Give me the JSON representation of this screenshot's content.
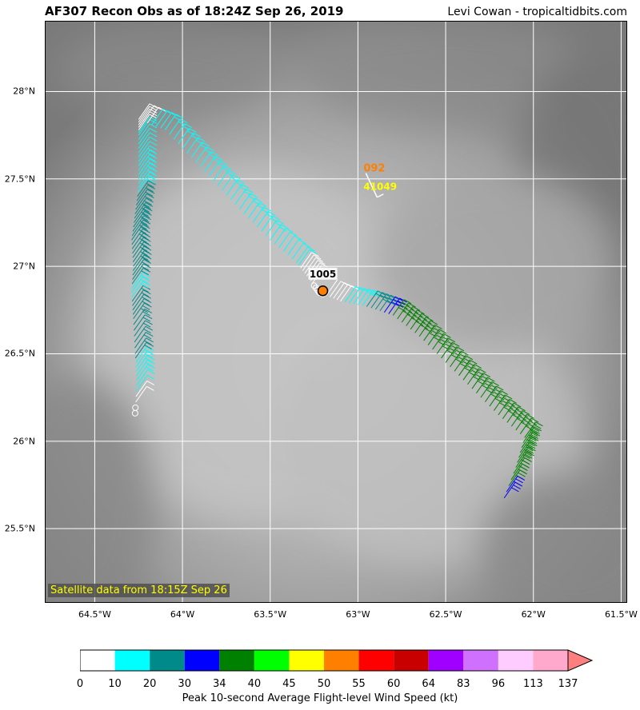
{
  "header": {
    "title": "AF307 Recon Obs as of 18:24Z Sep 26, 2019",
    "credit": "Levi Cowan - tropicaltidbits.com"
  },
  "map": {
    "lon_range": [
      -64.78,
      -61.47
    ],
    "lat_range": [
      25.08,
      28.4
    ],
    "x_ticks": [
      "64.5°W",
      "64°W",
      "63.5°W",
      "63°W",
      "62.5°W",
      "62°W",
      "61.5°W"
    ],
    "x_tick_values": [
      -64.5,
      -64.0,
      -63.5,
      -63.0,
      -62.5,
      -62.0,
      -61.5
    ],
    "y_ticks": [
      "28°N",
      "27.5°N",
      "27°N",
      "26.5°N",
      "26°N",
      "25.5°N"
    ],
    "y_tick_values": [
      28.0,
      27.5,
      27.0,
      26.5,
      26.0,
      25.5
    ],
    "satellite_note": "Satellite data from 18:15Z Sep 26",
    "center_pressure_label": "1005",
    "center": {
      "lon": -63.2,
      "lat": 26.86
    },
    "buoy": {
      "wind_dir_label": "092",
      "id_label": "41049",
      "lon": -62.9,
      "lat": 27.45
    },
    "flight_track": [
      {
        "lon": -64.27,
        "lat": 26.16,
        "speed": 0
      },
      {
        "lon": -64.26,
        "lat": 26.35,
        "speed": 15
      },
      {
        "lon": -64.27,
        "lat": 26.5,
        "speed": 22
      },
      {
        "lon": -64.28,
        "lat": 26.7,
        "speed": 25
      },
      {
        "lon": -64.29,
        "lat": 26.85,
        "speed": 18
      },
      {
        "lon": -64.28,
        "lat": 27.0,
        "speed": 25
      },
      {
        "lon": -64.29,
        "lat": 27.15,
        "speed": 25
      },
      {
        "lon": -64.27,
        "lat": 27.3,
        "speed": 25
      },
      {
        "lon": -64.25,
        "lat": 27.45,
        "speed": 18
      },
      {
        "lon": -64.25,
        "lat": 27.6,
        "speed": 15
      },
      {
        "lon": -64.25,
        "lat": 27.75,
        "speed": 12
      },
      {
        "lon": -64.25,
        "lat": 27.84,
        "speed": 5
      },
      {
        "lon": -64.1,
        "lat": 27.78,
        "speed": 15
      },
      {
        "lon": -63.95,
        "lat": 27.62,
        "speed": 15
      },
      {
        "lon": -63.8,
        "lat": 27.46,
        "speed": 15
      },
      {
        "lon": -63.65,
        "lat": 27.3,
        "speed": 15
      },
      {
        "lon": -63.5,
        "lat": 27.15,
        "speed": 15
      },
      {
        "lon": -63.35,
        "lat": 27.02,
        "speed": 12
      },
      {
        "lon": -63.28,
        "lat": 26.93,
        "speed": 5
      },
      {
        "lon": -63.22,
        "lat": 26.85,
        "speed": 2
      },
      {
        "lon": -63.1,
        "lat": 26.8,
        "speed": 8
      },
      {
        "lon": -62.95,
        "lat": 26.77,
        "speed": 20
      },
      {
        "lon": -62.8,
        "lat": 26.72,
        "speed": 35
      },
      {
        "lon": -62.65,
        "lat": 26.6,
        "speed": 36
      },
      {
        "lon": -62.5,
        "lat": 26.45,
        "speed": 36
      },
      {
        "lon": -62.35,
        "lat": 26.3,
        "speed": 36
      },
      {
        "lon": -62.2,
        "lat": 26.15,
        "speed": 36
      },
      {
        "lon": -62.05,
        "lat": 26.02,
        "speed": 36
      },
      {
        "lon": -62.1,
        "lat": 25.85,
        "speed": 36
      },
      {
        "lon": -62.18,
        "lat": 25.64,
        "speed": 32
      }
    ]
  },
  "colorbar": {
    "label": "Peak 10-second Average Flight-level Wind Speed (kt)",
    "ticks": [
      "0",
      "10",
      "20",
      "30",
      "34",
      "40",
      "45",
      "50",
      "55",
      "60",
      "64",
      "83",
      "96",
      "113",
      "137"
    ],
    "colors": [
      "#ffffff",
      "#00ffff",
      "#008b8b",
      "#0000ff",
      "#008000",
      "#00ff00",
      "#ffff00",
      "#ff7f00",
      "#ff0000",
      "#c80000",
      "#a000ff",
      "#d070ff",
      "#ffccff",
      "#ffaacc"
    ],
    "arrow_color": "#ff7f7f"
  },
  "colors": {
    "pressure_label_bg": "#ffffff",
    "center_marker": "#ff7f00",
    "buoy_dir": "#ff7f00",
    "buoy_id": "#ffff00"
  }
}
